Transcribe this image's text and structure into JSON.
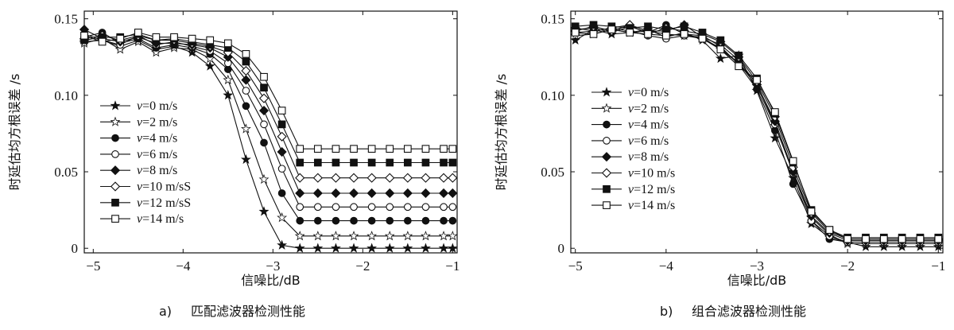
{
  "chart_data": [
    {
      "type": "line",
      "caption_label": "a)",
      "caption": "匹配滤波器检测性能",
      "xlabel": "信噪比/dB",
      "ylabel": "时延估均方根误差 /s",
      "xlim": [
        -5.1,
        -0.95
      ],
      "ylim": [
        -0.003,
        0.155
      ],
      "xticks": [
        -5,
        -4,
        -3,
        -2,
        -1
      ],
      "xtick_labels": [
        "−5",
        "−4",
        "−3",
        "−2",
        "−1"
      ],
      "yticks": [
        0,
        0.05,
        0.1,
        0.15
      ],
      "ytick_labels": [
        "0",
        "0.05",
        "0.10",
        "0.15"
      ],
      "legend_position": "left",
      "x": [
        -5.1,
        -4.9,
        -4.7,
        -4.5,
        -4.3,
        -4.1,
        -3.9,
        -3.7,
        -3.5,
        -3.3,
        -3.1,
        -2.9,
        -2.7,
        -2.5,
        -2.3,
        -2.1,
        -1.9,
        -1.7,
        -1.5,
        -1.3,
        -1.1,
        -1.0
      ],
      "series": [
        {
          "name": "v=0 m/s",
          "marker": "star",
          "fill": "#111111",
          "values": [
            0.135,
            0.136,
            0.132,
            0.136,
            0.13,
            0.132,
            0.128,
            0.119,
            0.1,
            0.058,
            0.024,
            0.002,
            0.0,
            0.0,
            0.0,
            0.0,
            0.0,
            0.0,
            0.0,
            0.0,
            0.0,
            0.0
          ]
        },
        {
          "name": "v=2 m/s",
          "marker": "star",
          "fill": "#ffffff",
          "values": [
            0.134,
            0.137,
            0.13,
            0.135,
            0.128,
            0.131,
            0.13,
            0.124,
            0.11,
            0.078,
            0.045,
            0.02,
            0.008,
            0.008,
            0.008,
            0.008,
            0.008,
            0.008,
            0.008,
            0.008,
            0.008,
            0.008
          ]
        },
        {
          "name": "v=4 m/s",
          "marker": "circle",
          "fill": "#111111",
          "values": [
            0.138,
            0.141,
            0.134,
            0.137,
            0.131,
            0.133,
            0.131,
            0.127,
            0.117,
            0.093,
            0.069,
            0.036,
            0.018,
            0.018,
            0.018,
            0.018,
            0.018,
            0.018,
            0.018,
            0.018,
            0.018,
            0.018
          ]
        },
        {
          "name": "v=6 m/s",
          "marker": "circle",
          "fill": "#ffffff",
          "values": [
            0.14,
            0.136,
            0.133,
            0.139,
            0.133,
            0.135,
            0.132,
            0.129,
            0.121,
            0.103,
            0.081,
            0.052,
            0.027,
            0.027,
            0.027,
            0.027,
            0.027,
            0.027,
            0.027,
            0.027,
            0.027,
            0.027
          ]
        },
        {
          "name": "v=8 m/s",
          "marker": "diamond",
          "fill": "#111111",
          "values": [
            0.143,
            0.137,
            0.135,
            0.138,
            0.134,
            0.134,
            0.133,
            0.131,
            0.125,
            0.11,
            0.09,
            0.063,
            0.036,
            0.036,
            0.036,
            0.036,
            0.036,
            0.036,
            0.036,
            0.036,
            0.036,
            0.036
          ]
        },
        {
          "name": "v=10 m/s",
          "marker": "diamond",
          "fill": "#ffffff",
          "values": [
            0.137,
            0.139,
            0.136,
            0.139,
            0.136,
            0.136,
            0.134,
            0.132,
            0.128,
            0.116,
            0.098,
            0.073,
            0.046,
            0.046,
            0.046,
            0.046,
            0.046,
            0.046,
            0.046,
            0.046,
            0.046,
            0.046
          ]
        },
        {
          "name": "v=12 m/s",
          "marker": "square",
          "fill": "#111111",
          "values": [
            0.136,
            0.138,
            0.138,
            0.14,
            0.136,
            0.137,
            0.135,
            0.133,
            0.131,
            0.122,
            0.105,
            0.081,
            0.056,
            0.056,
            0.056,
            0.056,
            0.056,
            0.056,
            0.056,
            0.056,
            0.056,
            0.056
          ]
        },
        {
          "name": "v=14 m/s",
          "marker": "square",
          "fill": "#ffffff",
          "values": [
            0.139,
            0.135,
            0.137,
            0.141,
            0.138,
            0.138,
            0.137,
            0.136,
            0.134,
            0.127,
            0.112,
            0.09,
            0.065,
            0.065,
            0.065,
            0.065,
            0.065,
            0.065,
            0.065,
            0.065,
            0.065,
            0.065
          ]
        }
      ],
      "legend_labels": [
        "v=0 m/s",
        "v=2 m/s",
        "v=4 m/s",
        "v=6 m/s",
        "v=8 m/s",
        "v=10 m/sS",
        "v=12 m/sS",
        "v=14 m/s"
      ]
    },
    {
      "type": "line",
      "caption_label": "b)",
      "caption": "组合滤波器检测性能",
      "xlabel": "信噪比/dB",
      "ylabel": "时延估均方根误差 /s",
      "xlim": [
        -5.05,
        -0.95
      ],
      "ylim": [
        -0.003,
        0.155
      ],
      "xticks": [
        -5,
        -4,
        -3,
        -2,
        -1
      ],
      "xtick_labels": [
        "−5",
        "−4",
        "−3",
        "−2",
        "−1"
      ],
      "yticks": [
        0,
        0.05,
        0.1,
        0.15
      ],
      "ytick_labels": [
        "0",
        "0.05",
        "0.10",
        "0.15"
      ],
      "legend_position": "left",
      "x": [
        -5.0,
        -4.8,
        -4.6,
        -4.4,
        -4.2,
        -4.0,
        -3.8,
        -3.6,
        -3.4,
        -3.2,
        -3.0,
        -2.8,
        -2.6,
        -2.4,
        -2.2,
        -2.0,
        -1.8,
        -1.6,
        -1.4,
        -1.2,
        -1.0
      ],
      "series": [
        {
          "name": "v=0 m/s",
          "marker": "star",
          "fill": "#111111",
          "values": [
            0.136,
            0.143,
            0.14,
            0.141,
            0.143,
            0.138,
            0.141,
            0.136,
            0.124,
            0.126,
            0.103,
            0.072,
            0.046,
            0.016,
            0.007,
            0.004,
            0.001,
            0.001,
            0.001,
            0.001,
            0.001
          ]
        },
        {
          "name": "v=2 m/s",
          "marker": "star",
          "fill": "#ffffff",
          "values": [
            0.139,
            0.14,
            0.143,
            0.141,
            0.142,
            0.14,
            0.139,
            0.138,
            0.13,
            0.121,
            0.106,
            0.08,
            0.05,
            0.02,
            0.009,
            0.003,
            0.003,
            0.003,
            0.003,
            0.003,
            0.003
          ]
        },
        {
          "name": "v=4 m/s",
          "marker": "circle",
          "fill": "#111111",
          "values": [
            0.143,
            0.144,
            0.141,
            0.145,
            0.141,
            0.146,
            0.14,
            0.139,
            0.132,
            0.12,
            0.104,
            0.077,
            0.042,
            0.018,
            0.006,
            0.004,
            0.004,
            0.004,
            0.004,
            0.004,
            0.004
          ]
        },
        {
          "name": "v=6 m/s",
          "marker": "circle",
          "fill": "#ffffff",
          "values": [
            0.141,
            0.142,
            0.144,
            0.142,
            0.139,
            0.137,
            0.139,
            0.137,
            0.131,
            0.121,
            0.108,
            0.081,
            0.049,
            0.018,
            0.008,
            0.004,
            0.004,
            0.004,
            0.004,
            0.004,
            0.004
          ]
        },
        {
          "name": "v=8 m/s",
          "marker": "diamond",
          "fill": "#111111",
          "values": [
            0.144,
            0.142,
            0.144,
            0.146,
            0.142,
            0.142,
            0.146,
            0.138,
            0.133,
            0.123,
            0.107,
            0.083,
            0.05,
            0.021,
            0.01,
            0.005,
            0.005,
            0.005,
            0.005,
            0.005,
            0.005
          ]
        },
        {
          "name": "v=10 m/s",
          "marker": "diamond",
          "fill": "#ffffff",
          "values": [
            0.142,
            0.145,
            0.142,
            0.146,
            0.14,
            0.144,
            0.142,
            0.14,
            0.135,
            0.125,
            0.109,
            0.086,
            0.053,
            0.023,
            0.011,
            0.006,
            0.006,
            0.006,
            0.006,
            0.006,
            0.006
          ]
        },
        {
          "name": "v=12 m/s",
          "marker": "square",
          "fill": "#111111",
          "values": [
            0.145,
            0.146,
            0.145,
            0.144,
            0.145,
            0.143,
            0.145,
            0.141,
            0.136,
            0.126,
            0.111,
            0.088,
            0.056,
            0.025,
            0.012,
            0.007,
            0.007,
            0.007,
            0.007,
            0.007,
            0.007
          ]
        },
        {
          "name": "v=14 m/s",
          "marker": "square",
          "fill": "#ffffff",
          "values": [
            0.141,
            0.14,
            0.143,
            0.141,
            0.14,
            0.139,
            0.14,
            0.137,
            0.13,
            0.119,
            0.11,
            0.089,
            0.057,
            0.024,
            0.012,
            0.006,
            0.006,
            0.006,
            0.006,
            0.006,
            0.006
          ]
        }
      ],
      "legend_labels": [
        "v=0 m/s",
        "v=2 m/s",
        "v=4 m/s",
        "v=6 m/s",
        "v=8 m/s",
        "v=10 m/s",
        "v=12 m/s",
        "v=14 m/s"
      ]
    }
  ]
}
